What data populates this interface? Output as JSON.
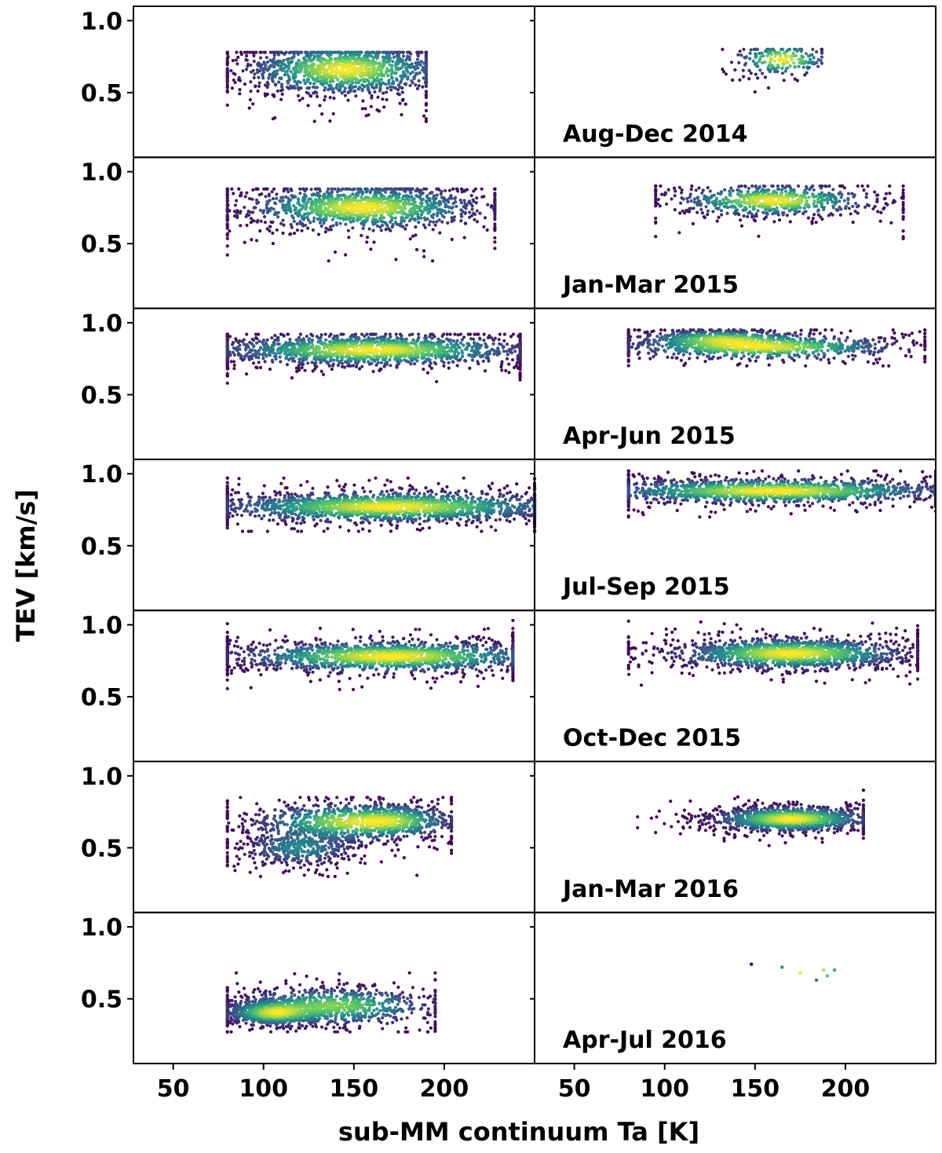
{
  "chart_data": {
    "type": "scatter",
    "subtype": "density-colored scatter grid (7 rows x 2 columns, shared axes)",
    "xlabel": "sub-MM continuum Ta [K]",
    "ylabel": "TEV [km/s]",
    "xlim": [
      28,
      250
    ],
    "ylim": [
      0.05,
      1.1
    ],
    "xticks": [
      50,
      100,
      150,
      200
    ],
    "yticks": [
      0.5,
      1.0
    ],
    "xtick_labels": [
      "50",
      "100",
      "150",
      "200"
    ],
    "ytick_labels": [
      "0.5",
      "1.0"
    ],
    "colormap": [
      "#440154",
      "#3b528b",
      "#21918c",
      "#5ec962",
      "#fde725"
    ],
    "rows": [
      {
        "label": "Aug-Dec 2014",
        "left": {
          "x_range": [
            80,
            190
          ],
          "y_range": [
            0.3,
            0.78
          ],
          "clusters": [
            {
              "x": 145,
              "y": 0.66,
              "sx": 25,
              "sy": 0.08,
              "w": 1
            }
          ],
          "n": 1300
        },
        "right": {
          "x_range": [
            132,
            187
          ],
          "y_range": [
            0.42,
            0.8
          ],
          "clusters": [
            {
              "x": 165,
              "y": 0.73,
              "sx": 12,
              "sy": 0.05,
              "w": 1
            }
          ],
          "n": 200
        }
      },
      {
        "label": "Jan-Mar 2015",
        "left": {
          "x_range": [
            80,
            228
          ],
          "y_range": [
            0.38,
            0.88
          ],
          "clusters": [
            {
              "x": 155,
              "y": 0.75,
              "sx": 30,
              "sy": 0.07,
              "w": 1
            }
          ],
          "n": 1300
        },
        "right": {
          "x_range": [
            95,
            232
          ],
          "y_range": [
            0.47,
            0.9
          ],
          "clusters": [
            {
              "x": 160,
              "y": 0.8,
              "sx": 25,
              "sy": 0.05,
              "w": 1
            }
          ],
          "n": 700
        }
      },
      {
        "label": "Apr-Jun 2015",
        "left": {
          "x_range": [
            80,
            242
          ],
          "y_range": [
            0.58,
            0.92
          ],
          "clusters": [
            {
              "x": 160,
              "y": 0.81,
              "sx": 40,
              "sy": 0.05,
              "w": 1
            }
          ],
          "n": 1600
        },
        "right": {
          "x_range": [
            80,
            244
          ],
          "y_range": [
            0.7,
            0.95
          ],
          "clusters": [
            {
              "x": 155,
              "y": 0.83,
              "sx": 35,
              "sy": 0.04,
              "w": 0.6
            },
            {
              "x": 130,
              "y": 0.89,
              "sx": 20,
              "sy": 0.03,
              "w": 0.4
            }
          ],
          "n": 1300
        }
      },
      {
        "label": "Jul-Sep 2015",
        "left": {
          "x_range": [
            80,
            250
          ],
          "y_range": [
            0.6,
            0.97
          ],
          "clusters": [
            {
              "x": 170,
              "y": 0.77,
              "sx": 45,
              "sy": 0.05,
              "w": 1
            }
          ],
          "n": 1900
        },
        "right": {
          "x_range": [
            80,
            250
          ],
          "y_range": [
            0.7,
            1.02
          ],
          "clusters": [
            {
              "x": 160,
              "y": 0.88,
              "sx": 45,
              "sy": 0.04,
              "w": 1
            }
          ],
          "n": 1600
        }
      },
      {
        "label": "Oct-Dec 2015",
        "left": {
          "x_range": [
            80,
            238
          ],
          "y_range": [
            0.55,
            1.03
          ],
          "clusters": [
            {
              "x": 170,
              "y": 0.78,
              "sx": 40,
              "sy": 0.05,
              "w": 1
            }
          ],
          "n": 1600
        },
        "right": {
          "x_range": [
            80,
            240
          ],
          "y_range": [
            0.58,
            1.05
          ],
          "clusters": [
            {
              "x": 170,
              "y": 0.8,
              "sx": 30,
              "sy": 0.05,
              "w": 1
            }
          ],
          "n": 1500
        }
      },
      {
        "label": "Jan-Mar 2016",
        "left": {
          "x_range": [
            80,
            204
          ],
          "y_range": [
            0.3,
            0.85
          ],
          "clusters": [
            {
              "x": 150,
              "y": 0.68,
              "sx": 25,
              "sy": 0.06,
              "w": 0.55
            },
            {
              "x": 120,
              "y": 0.5,
              "sx": 15,
              "sy": 0.06,
              "w": 0.25
            },
            {
              "x": 175,
              "y": 0.69,
              "sx": 12,
              "sy": 0.05,
              "w": 0.2
            }
          ],
          "n": 1600
        },
        "right": {
          "x_range": [
            85,
            210
          ],
          "y_range": [
            0.5,
            0.9
          ],
          "clusters": [
            {
              "x": 170,
              "y": 0.7,
              "sx": 20,
              "sy": 0.04,
              "w": 1
            }
          ],
          "n": 1200
        }
      },
      {
        "label": "Apr-Jul 2016",
        "left": {
          "x_range": [
            80,
            195
          ],
          "y_range": [
            0.27,
            0.68
          ],
          "clusters": [
            {
              "x": 105,
              "y": 0.4,
              "sx": 12,
              "sy": 0.04,
              "w": 0.5
            },
            {
              "x": 140,
              "y": 0.45,
              "sx": 25,
              "sy": 0.06,
              "w": 0.5
            }
          ],
          "n": 1500
        },
        "right": {
          "points": [
            [
              148,
              0.74,
              0.0
            ],
            [
              165,
              0.72,
              0.5
            ],
            [
              175,
              0.68,
              1.0
            ],
            [
              184,
              0.63,
              0.4
            ],
            [
              188,
              0.7,
              0.9
            ],
            [
              190,
              0.66,
              0.7
            ],
            [
              194,
              0.7,
              0.6
            ]
          ]
        }
      }
    ]
  }
}
